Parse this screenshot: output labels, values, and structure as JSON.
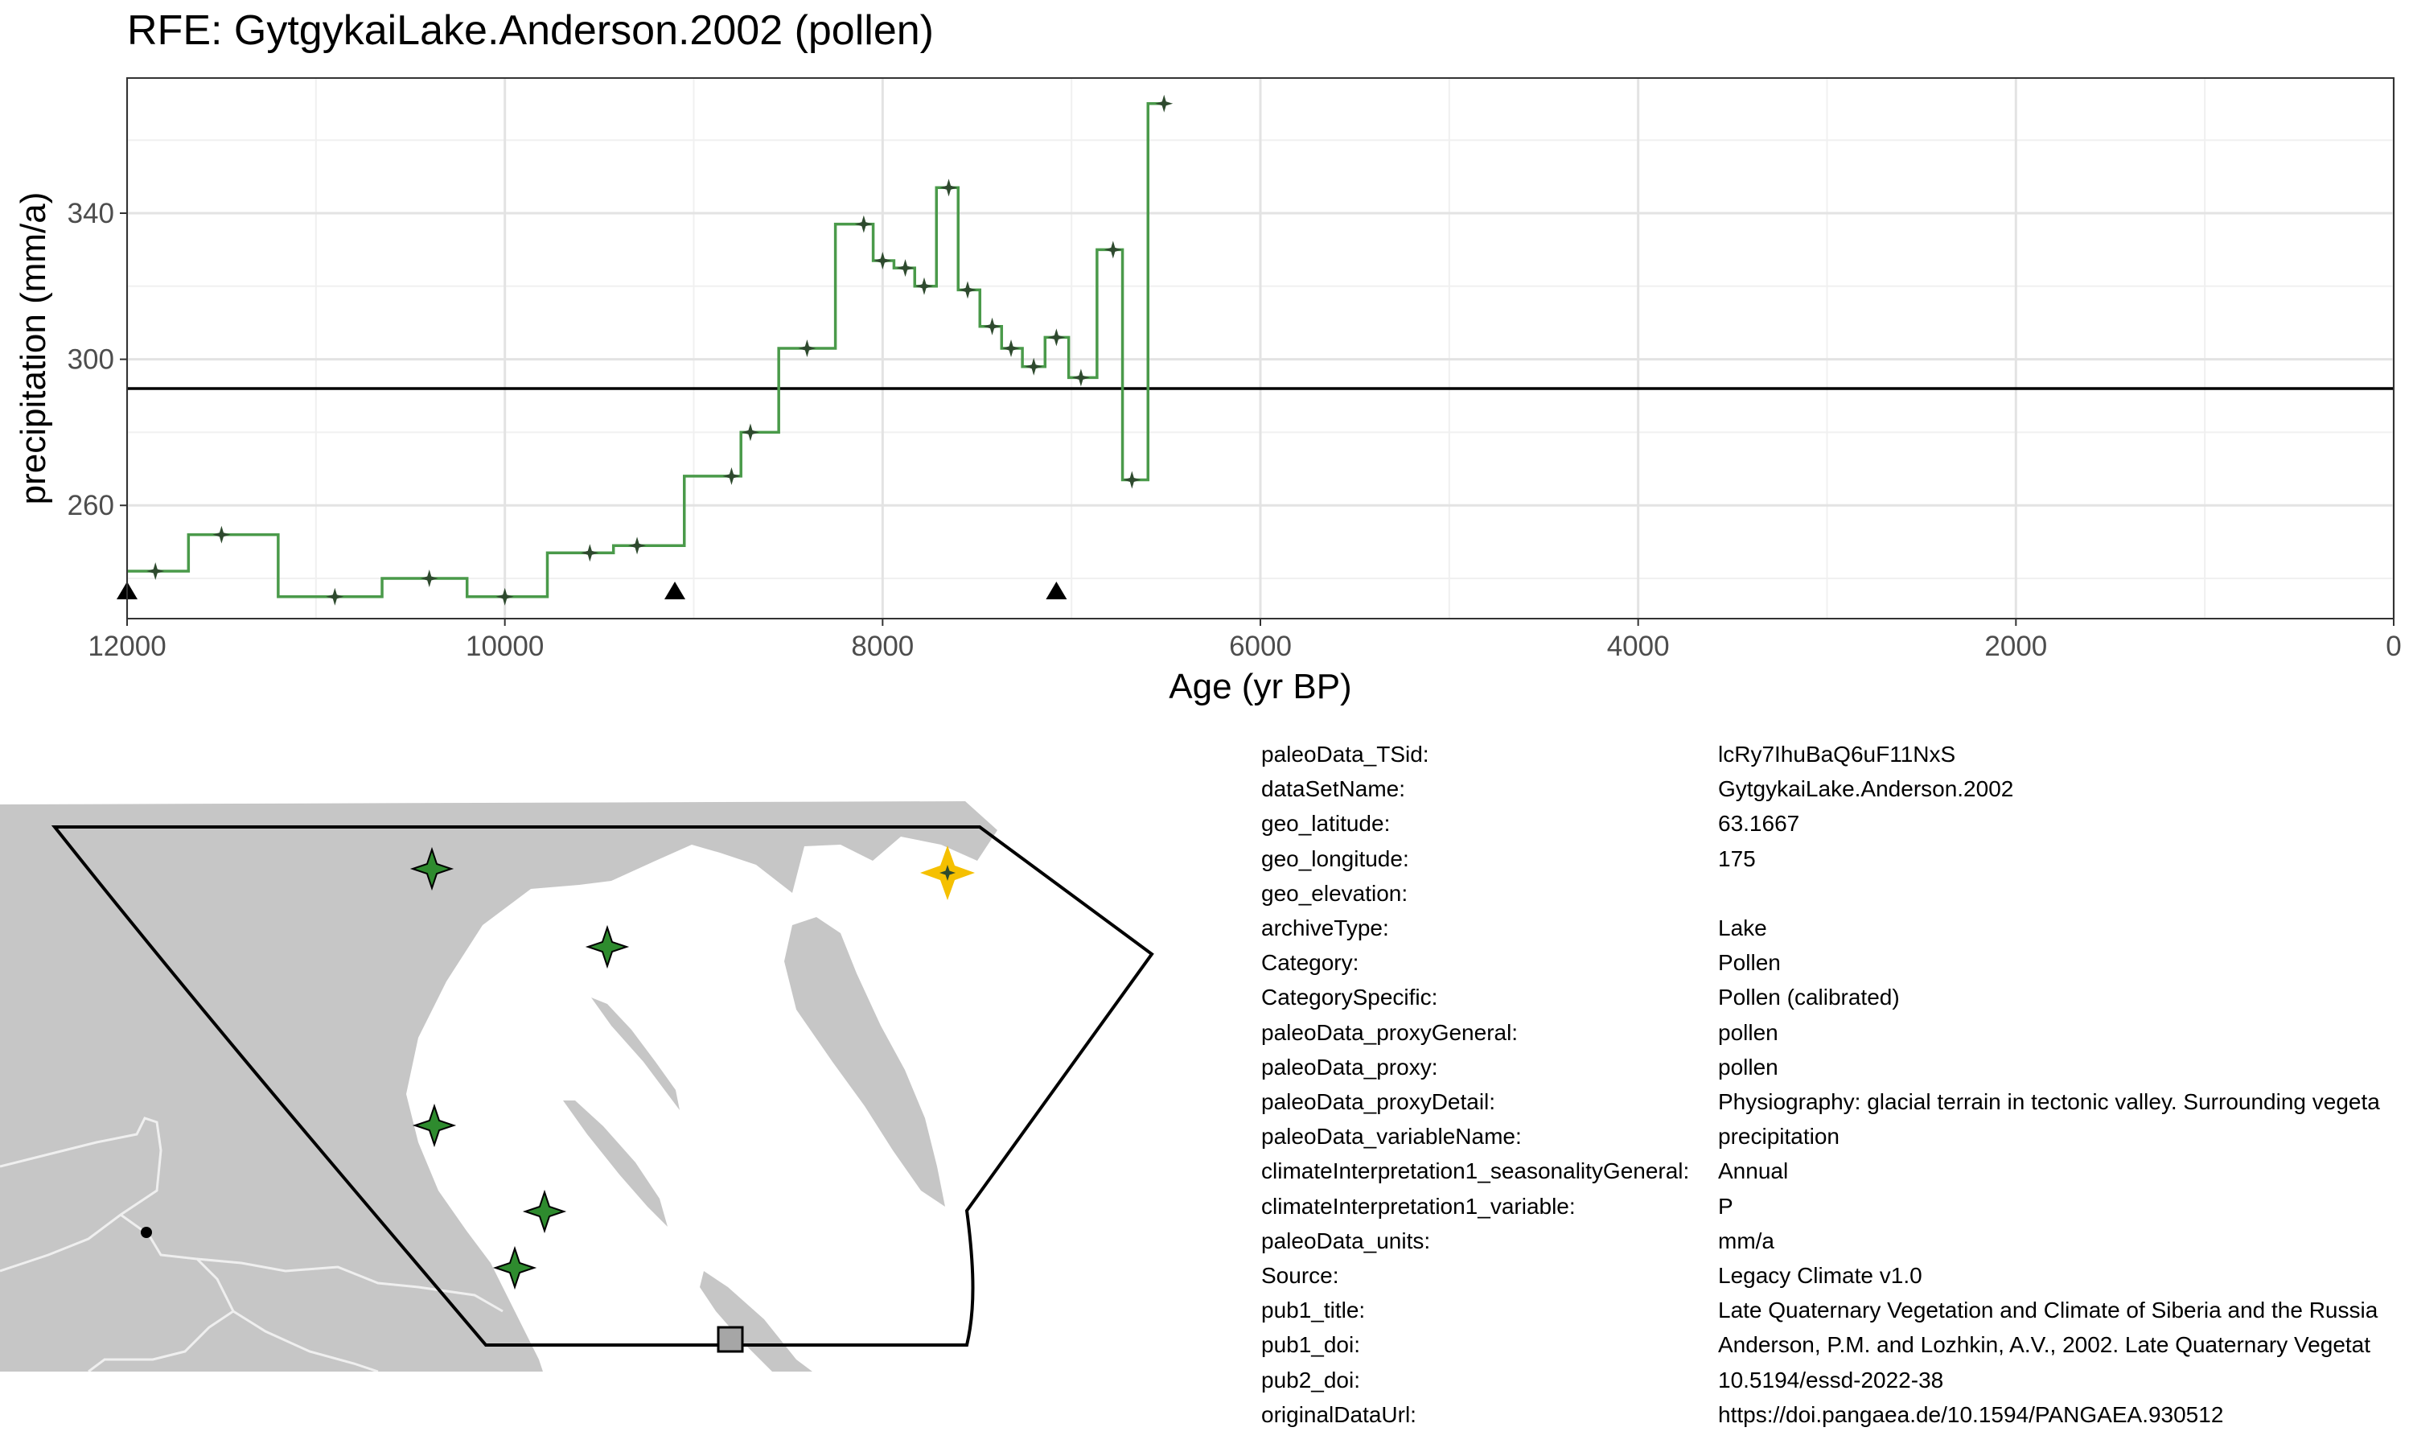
{
  "chart_data": {
    "type": "line",
    "title": "RFE: GytgykaiLake.Anderson.2002 (pollen)",
    "xlabel": "Age (yr BP)",
    "ylabel": "precipitation (mm/a)",
    "xlim": [
      12000,
      0
    ],
    "ylim": [
      229,
      377
    ],
    "x_ticks": [
      12000,
      10000,
      8000,
      6000,
      4000,
      2000,
      0
    ],
    "y_ticks": [
      260,
      300,
      340
    ],
    "grid": true,
    "legend": "none",
    "reference_line": 292,
    "series_color": "#4a9a4a",
    "point_color": "#2e4a2e",
    "series": [
      {
        "x": [
          11850,
          11500,
          10900,
          10400,
          10000,
          9550,
          9300,
          8800,
          8700,
          8400,
          8100,
          8000,
          7880,
          7780,
          7650,
          7550,
          7420,
          7320,
          7200,
          7080,
          6950,
          6780,
          6680,
          6510
        ],
        "values": [
          242,
          252,
          235,
          240,
          235,
          247,
          249,
          268,
          280,
          303,
          337,
          327,
          325,
          320,
          347,
          319,
          309,
          303,
          298,
          306,
          295,
          330,
          267,
          370
        ]
      }
    ],
    "markers": [
      12000,
      9100,
      7080
    ]
  },
  "map": {
    "land_color": "#c6c6c6",
    "outline_color": "#000000",
    "site_color": "#2e8b2e",
    "selected_site_color": "#f5c000"
  },
  "meta": [
    {
      "key": "paleoData_TSid:",
      "value": "lcRy7IhuBaQ6uF11NxS"
    },
    {
      "key": "dataSetName:",
      "value": "GytgykaiLake.Anderson.2002"
    },
    {
      "key": "geo_latitude:",
      "value": "63.1667"
    },
    {
      "key": "geo_longitude:",
      "value": "175"
    },
    {
      "key": "geo_elevation:",
      "value": ""
    },
    {
      "key": "archiveType:",
      "value": "Lake"
    },
    {
      "key": "Category:",
      "value": "Pollen"
    },
    {
      "key": "CategorySpecific:",
      "value": "Pollen (calibrated)"
    },
    {
      "key": "paleoData_proxyGeneral:",
      "value": "pollen"
    },
    {
      "key": "paleoData_proxy:",
      "value": "pollen"
    },
    {
      "key": "paleoData_proxyDetail:",
      "value": "Physiography: glacial terrain in tectonic valley. Surrounding vegeta"
    },
    {
      "key": "paleoData_variableName:",
      "value": "precipitation"
    },
    {
      "key": "climateInterpretation1_seasonalityGeneral:",
      "value": "Annual"
    },
    {
      "key": "climateInterpretation1_variable:",
      "value": "P"
    },
    {
      "key": "paleoData_units:",
      "value": "mm/a"
    },
    {
      "key": "Source:",
      "value": "Legacy Climate v1.0"
    },
    {
      "key": "pub1_title:",
      "value": "Late Quaternary Vegetation and Climate of Siberia and the Russia"
    },
    {
      "key": "pub1_doi:",
      "value": "Anderson, P.M. and Lozhkin, A.V., 2002. Late Quaternary Vegetat"
    },
    {
      "key": "pub2_doi:",
      "value": "10.5194/essd-2022-38"
    },
    {
      "key": "originalDataUrl:",
      "value": "https://doi.pangaea.de/10.1594/PANGAEA.930512"
    }
  ]
}
